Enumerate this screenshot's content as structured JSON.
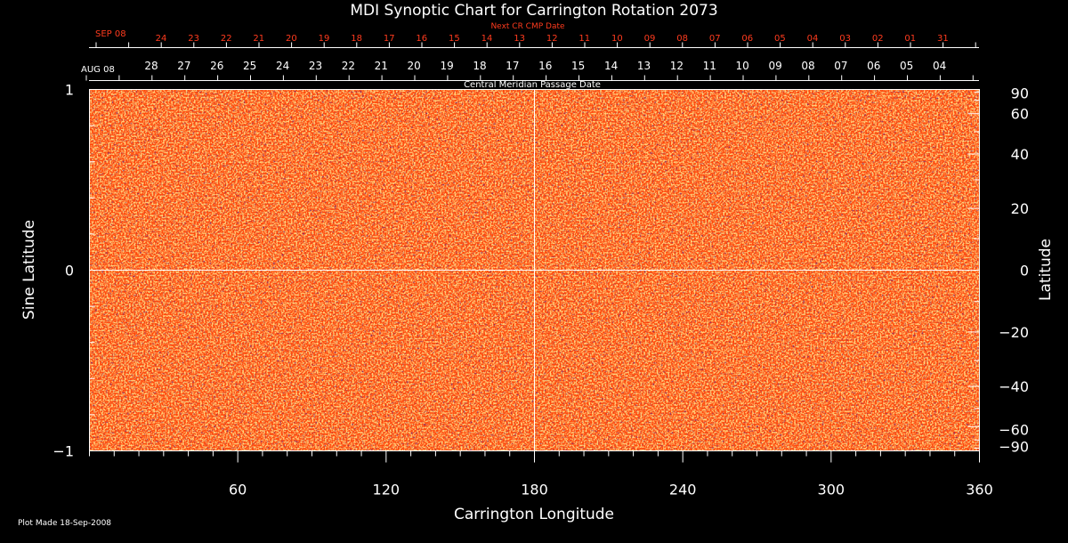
{
  "chart_data": {
    "type": "heatmap",
    "title": "MDI Synoptic Chart for Carrington Rotation 2073",
    "xlabel": "Carrington Longitude",
    "ylabel_left": "Sine Latitude",
    "ylabel_right": "Latitude",
    "xlim": [
      0,
      360
    ],
    "ylim": [
      -1,
      1
    ],
    "x_ticks": [
      60,
      120,
      180,
      240,
      300,
      360
    ],
    "y_ticks_left": [
      -1,
      0,
      1
    ],
    "y_ticks_left_labels": [
      "−1",
      "0",
      "1"
    ],
    "y_ticks_right": [
      90,
      60,
      40,
      20,
      0,
      -20,
      -40,
      -60,
      -90
    ],
    "y_ticks_right_labels": [
      "90",
      "60",
      "40",
      "20",
      "0",
      "−20",
      "−40",
      "−60",
      "−90"
    ],
    "grid_lines": {
      "vertical_at_longitude": 180,
      "horizontal_at_sine_latitude": 0
    },
    "cmp_axis_label": "Central Meridian Passage Date",
    "cmp_dates": {
      "start_label": "AUG 08",
      "days": [
        "28",
        "27",
        "26",
        "25",
        "24",
        "23",
        "22",
        "21",
        "20",
        "19",
        "18",
        "17",
        "16",
        "15",
        "14",
        "13",
        "12",
        "11",
        "10",
        "09",
        "08",
        "07",
        "06",
        "05",
        "04"
      ]
    },
    "next_cmp_axis_label": "Next CR CMP Date",
    "next_cmp_dates": {
      "start_label": "SEP 08",
      "days": [
        "24",
        "23",
        "22",
        "21",
        "20",
        "19",
        "18",
        "17",
        "16",
        "15",
        "14",
        "13",
        "12",
        "11",
        "10",
        "09",
        "08",
        "07",
        "06",
        "05",
        "04",
        "03",
        "02",
        "01",
        "31"
      ]
    },
    "colors": {
      "background": "#000000",
      "axes": "#ffffff",
      "next_cmp_text": "#ff3b1e",
      "map_base": "#ff4a0e",
      "map_light": "#ffc23a",
      "map_dark": "#2a0a3a"
    }
  },
  "footer": {
    "plot_made": "Plot Made 18-Sep-2008"
  }
}
